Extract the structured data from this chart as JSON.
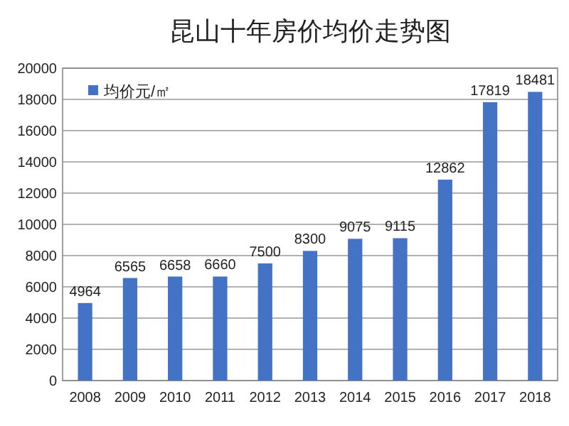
{
  "chart_data": {
    "type": "bar",
    "title": "昆山十年房价均价走势图",
    "categories": [
      "2008",
      "2009",
      "2010",
      "2011",
      "2012",
      "2013",
      "2014",
      "2015",
      "2016",
      "2017",
      "2018"
    ],
    "series": [
      {
        "name": "均价元/㎡",
        "color": "#4472c4",
        "values": [
          4964,
          6565,
          6658,
          6660,
          7500,
          8300,
          9075,
          9115,
          12862,
          17819,
          18481
        ]
      }
    ],
    "ylim": [
      0,
      20000
    ],
    "yticks": [
      0,
      2000,
      4000,
      6000,
      8000,
      10000,
      12000,
      14000,
      16000,
      18000,
      20000
    ],
    "grid": "y",
    "legend": "top left",
    "data_labels": true
  }
}
